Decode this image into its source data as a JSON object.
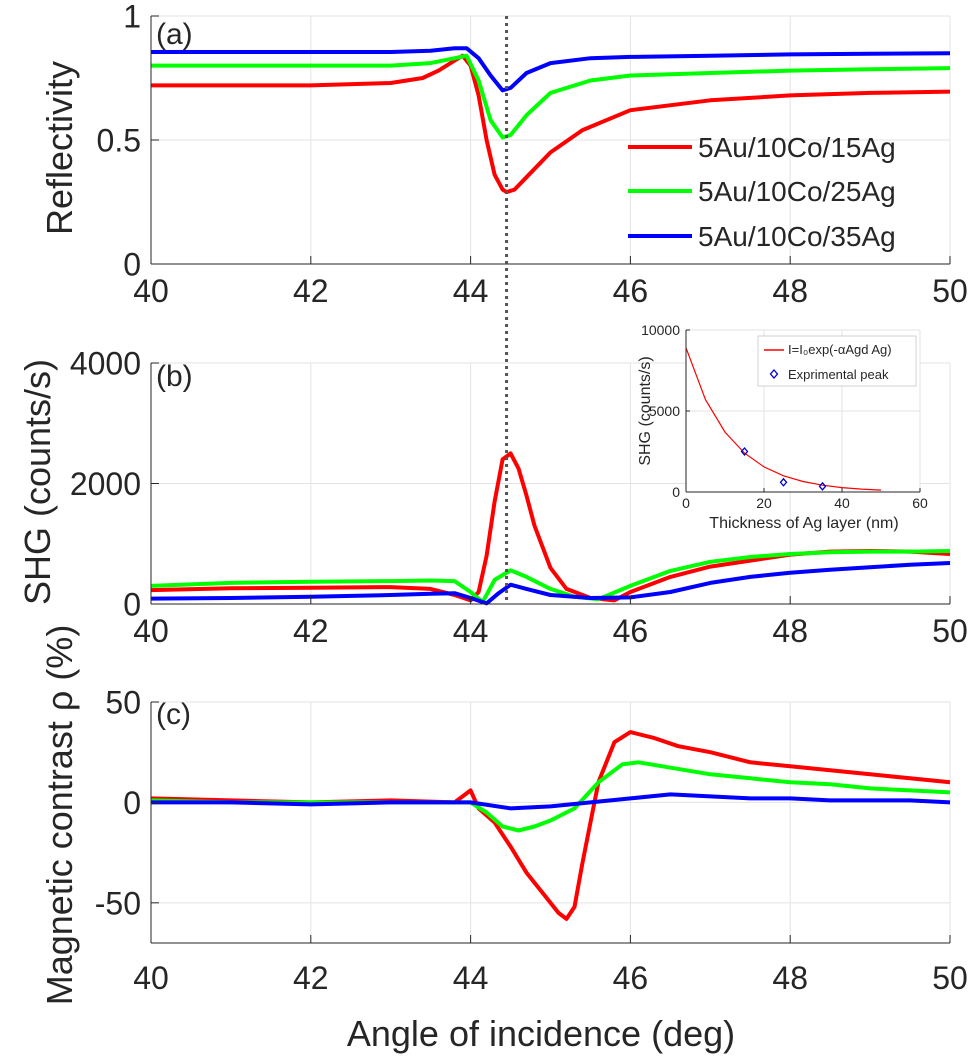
{
  "figure": {
    "xlabel": "Angle of incidence (deg)",
    "vline_x": 44.45,
    "grid": true
  },
  "chart_data": [
    {
      "type": "line",
      "panel": "(a)",
      "ylabel": "Reflectivity",
      "xlim": [
        40,
        50
      ],
      "ylim": [
        0,
        1
      ],
      "xticks": [
        "40",
        "42",
        "44",
        "46",
        "48",
        "50"
      ],
      "yticks": [
        "0",
        "0.5",
        "1"
      ],
      "legend": "right",
      "series": [
        {
          "name": "5Au/10Co/15Ag",
          "color": "#ff0000",
          "x": [
            40,
            41,
            42,
            43,
            43.4,
            43.6,
            43.8,
            43.9,
            44.0,
            44.1,
            44.2,
            44.3,
            44.4,
            44.45,
            44.55,
            44.7,
            45.0,
            45.4,
            46,
            47,
            48,
            49,
            50
          ],
          "y": [
            0.72,
            0.72,
            0.72,
            0.73,
            0.75,
            0.78,
            0.82,
            0.84,
            0.8,
            0.68,
            0.5,
            0.36,
            0.3,
            0.29,
            0.3,
            0.35,
            0.45,
            0.54,
            0.62,
            0.66,
            0.68,
            0.69,
            0.695
          ]
        },
        {
          "name": "5Au/10Co/25Ag",
          "color": "#00ff00",
          "x": [
            40,
            41,
            42,
            43,
            43.5,
            43.8,
            43.95,
            44.1,
            44.25,
            44.4,
            44.5,
            44.7,
            45.0,
            45.5,
            46,
            47,
            48,
            49,
            50
          ],
          "y": [
            0.8,
            0.8,
            0.8,
            0.8,
            0.81,
            0.83,
            0.84,
            0.74,
            0.58,
            0.51,
            0.52,
            0.6,
            0.69,
            0.74,
            0.76,
            0.77,
            0.78,
            0.785,
            0.79
          ]
        },
        {
          "name": "5Au/10Co/35Ag",
          "color": "#0000ff",
          "x": [
            40,
            41,
            42,
            43,
            43.5,
            43.8,
            43.95,
            44.1,
            44.25,
            44.4,
            44.5,
            44.7,
            45.0,
            45.5,
            46,
            47,
            48,
            49,
            50
          ],
          "y": [
            0.855,
            0.855,
            0.855,
            0.855,
            0.86,
            0.87,
            0.87,
            0.83,
            0.76,
            0.7,
            0.71,
            0.77,
            0.81,
            0.83,
            0.835,
            0.84,
            0.845,
            0.848,
            0.85
          ]
        }
      ]
    },
    {
      "type": "line",
      "panel": "(b)",
      "ylabel": "SHG (counts/s)",
      "xlim": [
        40,
        50
      ],
      "ylim": [
        0,
        4000
      ],
      "xticks": [
        "40",
        "42",
        "44",
        "46",
        "48",
        "50"
      ],
      "yticks": [
        "0",
        "2000",
        "4000"
      ],
      "series": [
        {
          "name": "5Au/10Co/15Ag",
          "color": "#ff0000",
          "x": [
            40,
            41,
            42,
            43,
            43.5,
            43.8,
            44.0,
            44.1,
            44.2,
            44.3,
            44.4,
            44.5,
            44.6,
            44.7,
            44.8,
            45.0,
            45.2,
            45.5,
            45.8,
            46,
            46.5,
            47,
            47.5,
            48,
            48.5,
            49,
            49.5,
            50
          ],
          "y": [
            230,
            260,
            270,
            280,
            250,
            150,
            60,
            200,
            800,
            1700,
            2400,
            2500,
            2250,
            1800,
            1300,
            600,
            250,
            100,
            60,
            200,
            450,
            620,
            720,
            820,
            870,
            880,
            870,
            830
          ]
        },
        {
          "name": "5Au/10Co/25Ag",
          "color": "#00ff00",
          "x": [
            40,
            41,
            42,
            43,
            43.5,
            43.8,
            44.0,
            44.15,
            44.3,
            44.5,
            44.7,
            45.0,
            45.3,
            45.6,
            46,
            46.5,
            47,
            47.5,
            48,
            48.5,
            49,
            49.5,
            50
          ],
          "y": [
            300,
            350,
            370,
            380,
            390,
            380,
            200,
            30,
            400,
            560,
            450,
            250,
            120,
            80,
            300,
            550,
            700,
            780,
            830,
            860,
            870,
            870,
            880
          ]
        },
        {
          "name": "5Au/10Co/35Ag",
          "color": "#0000ff",
          "x": [
            40,
            41,
            42,
            43,
            43.5,
            43.8,
            44.0,
            44.2,
            44.35,
            44.5,
            44.7,
            45.0,
            45.5,
            46,
            46.5,
            47,
            47.5,
            48,
            48.5,
            49,
            49.5,
            50
          ],
          "y": [
            90,
            100,
            120,
            150,
            170,
            180,
            100,
            10,
            180,
            320,
            250,
            150,
            100,
            110,
            200,
            350,
            450,
            520,
            570,
            610,
            650,
            680
          ]
        }
      ]
    },
    {
      "type": "scatter",
      "panel": "inset",
      "xlabel": "Thickness of Ag layer (nm)",
      "ylabel": "SHG (counts/s)",
      "xlim": [
        0,
        60
      ],
      "ylim": [
        0,
        10000
      ],
      "xticks": [
        "0",
        "20",
        "40",
        "60"
      ],
      "yticks": [
        "0",
        "5000",
        "10000"
      ],
      "legend": "top-right",
      "fit": {
        "name": "I=I₀exp(-αAgd Ag)",
        "color": "#ff0000",
        "x": [
          0,
          5,
          10,
          15,
          20,
          25,
          30,
          35,
          40,
          45,
          50
        ],
        "y": [
          8900,
          5700,
          3700,
          2400,
          1550,
          1000,
          650,
          420,
          270,
          180,
          115
        ]
      },
      "points": {
        "name": "Exprimental peak",
        "color": "#0000cc",
        "x": [
          15,
          25,
          35
        ],
        "y": [
          2500,
          600,
          350
        ]
      }
    },
    {
      "type": "line",
      "panel": "(c)",
      "ylabel": "Magnetic contrast ρ (%)",
      "xlim": [
        40,
        50
      ],
      "ylim": [
        -70,
        50
      ],
      "xticks": [
        "40",
        "42",
        "44",
        "46",
        "48",
        "50"
      ],
      "yticks": [
        "-50",
        "0",
        "50"
      ],
      "series": [
        {
          "name": "5Au/10Co/15Ag",
          "color": "#ff0000",
          "x": [
            40,
            41,
            42,
            43,
            43.8,
            44.0,
            44.1,
            44.3,
            44.5,
            44.7,
            44.9,
            45.1,
            45.2,
            45.3,
            45.4,
            45.6,
            45.8,
            46.0,
            46.3,
            46.6,
            47,
            47.5,
            48,
            48.5,
            49,
            49.5,
            50
          ],
          "y": [
            2,
            1,
            0,
            1,
            0,
            6,
            -3,
            -10,
            -22,
            -35,
            -45,
            -55,
            -58,
            -52,
            -30,
            10,
            30,
            35,
            32,
            28,
            25,
            20,
            18,
            16,
            14,
            12,
            10
          ]
        },
        {
          "name": "5Au/10Co/25Ag",
          "color": "#00ff00",
          "x": [
            40,
            41,
            42,
            43,
            44,
            44.2,
            44.4,
            44.6,
            44.8,
            45,
            45.3,
            45.6,
            45.9,
            46.1,
            46.4,
            47,
            47.5,
            48,
            48.5,
            49,
            49.5,
            50
          ],
          "y": [
            1,
            0,
            0,
            0,
            0,
            -5,
            -12,
            -14,
            -12,
            -9,
            -3,
            10,
            19,
            20,
            18,
            14,
            12,
            10,
            9,
            7,
            6,
            5
          ]
        },
        {
          "name": "5Au/10Co/35Ag",
          "color": "#0000ff",
          "x": [
            40,
            41,
            42,
            43,
            44,
            44.5,
            45,
            45.5,
            46,
            46.5,
            47,
            47.5,
            48,
            48.5,
            49,
            49.5,
            50
          ],
          "y": [
            0,
            0,
            -1,
            0,
            0,
            -3,
            -2,
            0,
            2,
            4,
            3,
            2,
            2,
            1,
            1,
            1,
            0
          ]
        }
      ]
    }
  ]
}
